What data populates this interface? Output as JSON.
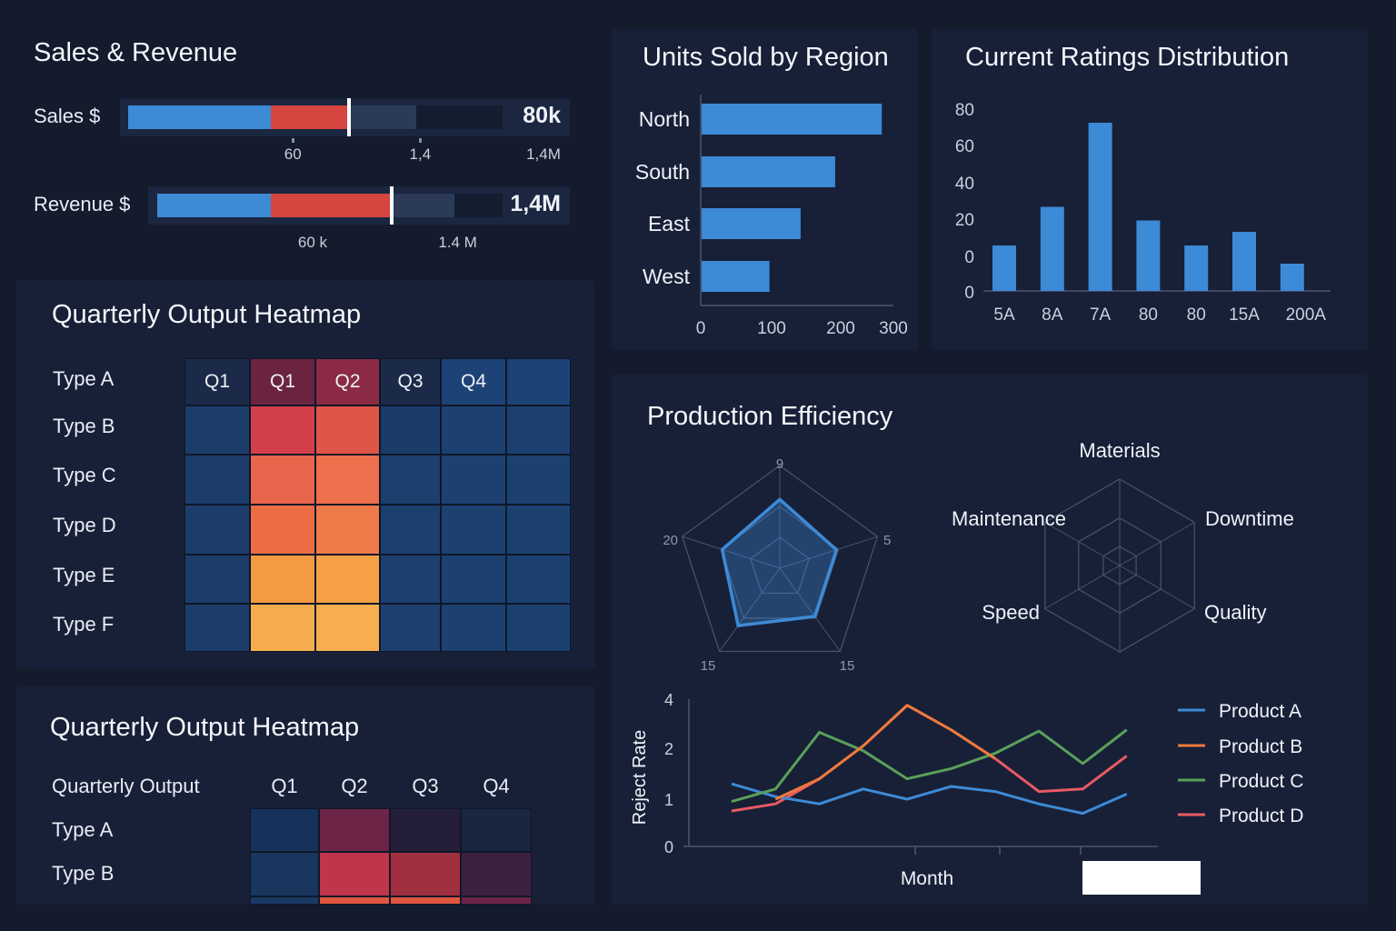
{
  "colors": {
    "background": "#131b2d",
    "panel": "#172037",
    "blue": "#3d8ad6",
    "red": "#d6453f",
    "slate": "#2b3a56",
    "track": "#1b2640"
  },
  "sales_revenue": {
    "title": "Sales & Revenue",
    "bullets": [
      {
        "label": "Sales $",
        "value": "80k",
        "blue_end": 0.38,
        "red_end": 0.59,
        "range_end": 0.77,
        "marker": 0.59,
        "ticks": [
          {
            "label": "60",
            "pos": 0.44,
            "mark": true
          },
          {
            "label": "1,4",
            "pos": 0.78,
            "mark": true
          },
          {
            "label": "1,4M",
            "pos": 1.0,
            "mark": false
          }
        ]
      },
      {
        "label": "Revenue $",
        "value": "1,4M",
        "blue_end": 0.33,
        "red_end": 0.68,
        "range_end": 0.86,
        "marker": 0.68,
        "ticks": [
          {
            "label": "60 k",
            "pos": 0.45,
            "mark": false
          },
          {
            "label": "1.4 M",
            "pos": 0.87,
            "mark": false
          }
        ]
      }
    ]
  },
  "heatmap1": {
    "title": "Quarterly Output Heatmap",
    "columns": [
      {
        "label": "Q1",
        "color": "#1a2a48"
      },
      {
        "label": "Q1",
        "color": "#6b2440"
      },
      {
        "label": "Q2",
        "color": "#8a2a45"
      },
      {
        "label": "Q3",
        "color": "#1a2a48"
      },
      {
        "label": "Q4",
        "color": "#1d4276"
      },
      {
        "label": "",
        "color": "#1d4276"
      }
    ],
    "rows": [
      {
        "label": "Type A"
      },
      {
        "label": "Type B",
        "colors": [
          "#1c3d6a",
          "#d43f4c",
          "#df5648",
          "#1b3b69",
          "#1c4070",
          "#1c4070"
        ]
      },
      {
        "label": "Type C",
        "colors": [
          "#1c3d6a",
          "#e8644a",
          "#ec704b",
          "#1c3f6d",
          "#1c4170",
          "#1c4170"
        ]
      },
      {
        "label": "Type D",
        "colors": [
          "#1c3d6a",
          "#ec6d44",
          "#ee7a4a",
          "#1c3f6d",
          "#1c4170",
          "#1c4170"
        ]
      },
      {
        "label": "Type E",
        "colors": [
          "#1c3d6a",
          "#f39a42",
          "#f5a044",
          "#1c3f6d",
          "#1c4170",
          "#1c4170"
        ]
      },
      {
        "label": "Type F",
        "colors": [
          "#1c3d6a",
          "#f5ad4e",
          "#f6ae50",
          "#1c3f6d",
          "#1c4170",
          "#1c4170"
        ]
      }
    ]
  },
  "heatmap2": {
    "title": "Quarterly Output Heatmap",
    "corner": "Quarterly Output",
    "columns": [
      "Q1",
      "Q2",
      "Q3",
      "Q4"
    ],
    "rows": [
      {
        "label": "Type A",
        "colors": [
          "#17325a",
          "#6e2446",
          "#241e38",
          "#1a2540"
        ]
      },
      {
        "label": "Type B",
        "colors": [
          "#18365e",
          "#c0344c",
          "#a0303f",
          "#3d2140"
        ]
      },
      {
        "label": "",
        "colors": [
          "#1a3a66",
          "#e0563e",
          "#e0563e",
          "#6e2446"
        ]
      }
    ]
  },
  "chart_data": [
    {
      "type": "bar",
      "orientation": "horizontal",
      "title": "Units Sold by Region",
      "categories": [
        "North",
        "South",
        "East",
        "West"
      ],
      "values": [
        278,
        192,
        142,
        97
      ],
      "xticks": [
        0,
        100,
        200,
        300
      ],
      "xlim": [
        0,
        300
      ],
      "color": "#3d8ad6"
    },
    {
      "type": "bar",
      "title": "Current Ratings Distribution",
      "categories": [
        "5A",
        "8A",
        "7A",
        "80",
        "80",
        "15A",
        "200A"
      ],
      "values": [
        20,
        37,
        74,
        31,
        20,
        26,
        12
      ],
      "ytick_labels": [
        "80",
        "60",
        "40",
        "20",
        "0",
        "0"
      ],
      "ylim": [
        0,
        80
      ],
      "color": "#3d8ad6"
    },
    {
      "type": "radar",
      "title": "Production Efficiency",
      "axis_labels": [
        "9",
        "5",
        "15",
        "15",
        "20"
      ],
      "values": [
        0.67,
        0.58,
        0.58,
        0.69,
        0.59
      ],
      "color": "#3d8ad6"
    },
    {
      "type": "radar",
      "axis_labels": [
        "Materials",
        "Downtime",
        "Quality",
        "",
        "Speed",
        "Maintenance"
      ],
      "values": []
    },
    {
      "type": "line",
      "xlabel": "Month",
      "ylabel": "Reject Rate",
      "yticks": [
        0,
        1,
        2,
        4
      ],
      "x": [
        1,
        2,
        3,
        4,
        5,
        6,
        7,
        8,
        9,
        10
      ],
      "series": [
        {
          "name": "Product D",
          "color": "#e85a64",
          "values": [
            0.75,
            0.9,
            1.4,
            2.1,
            3.75,
            2.75,
            1.8,
            1.15,
            1.2,
            1.85
          ]
        },
        {
          "name": "Product A",
          "color": "#3d8ad6",
          "values": [
            1.3,
            1.05,
            0.9,
            1.2,
            1.0,
            1.25,
            1.15,
            0.9,
            0.7,
            1.1
          ]
        },
        {
          "name": "Product C",
          "color": "#5aa05a",
          "values": [
            0.95,
            1.2,
            2.65,
            1.95,
            1.4,
            1.6,
            1.9,
            2.7,
            1.7,
            2.75
          ]
        },
        {
          "name": "Product B",
          "color": "#ee7a3c",
          "values": [
            null,
            1.0,
            1.4,
            2.1,
            3.75,
            2.75,
            1.8,
            null,
            null,
            null
          ]
        }
      ],
      "legend": [
        "Product A",
        "Product B",
        "Product C",
        "Product D"
      ],
      "legend_colors": [
        "#3d8ad6",
        "#ee7a3c",
        "#5aa05a",
        "#e85a64"
      ],
      "legend_placement": "right"
    }
  ]
}
